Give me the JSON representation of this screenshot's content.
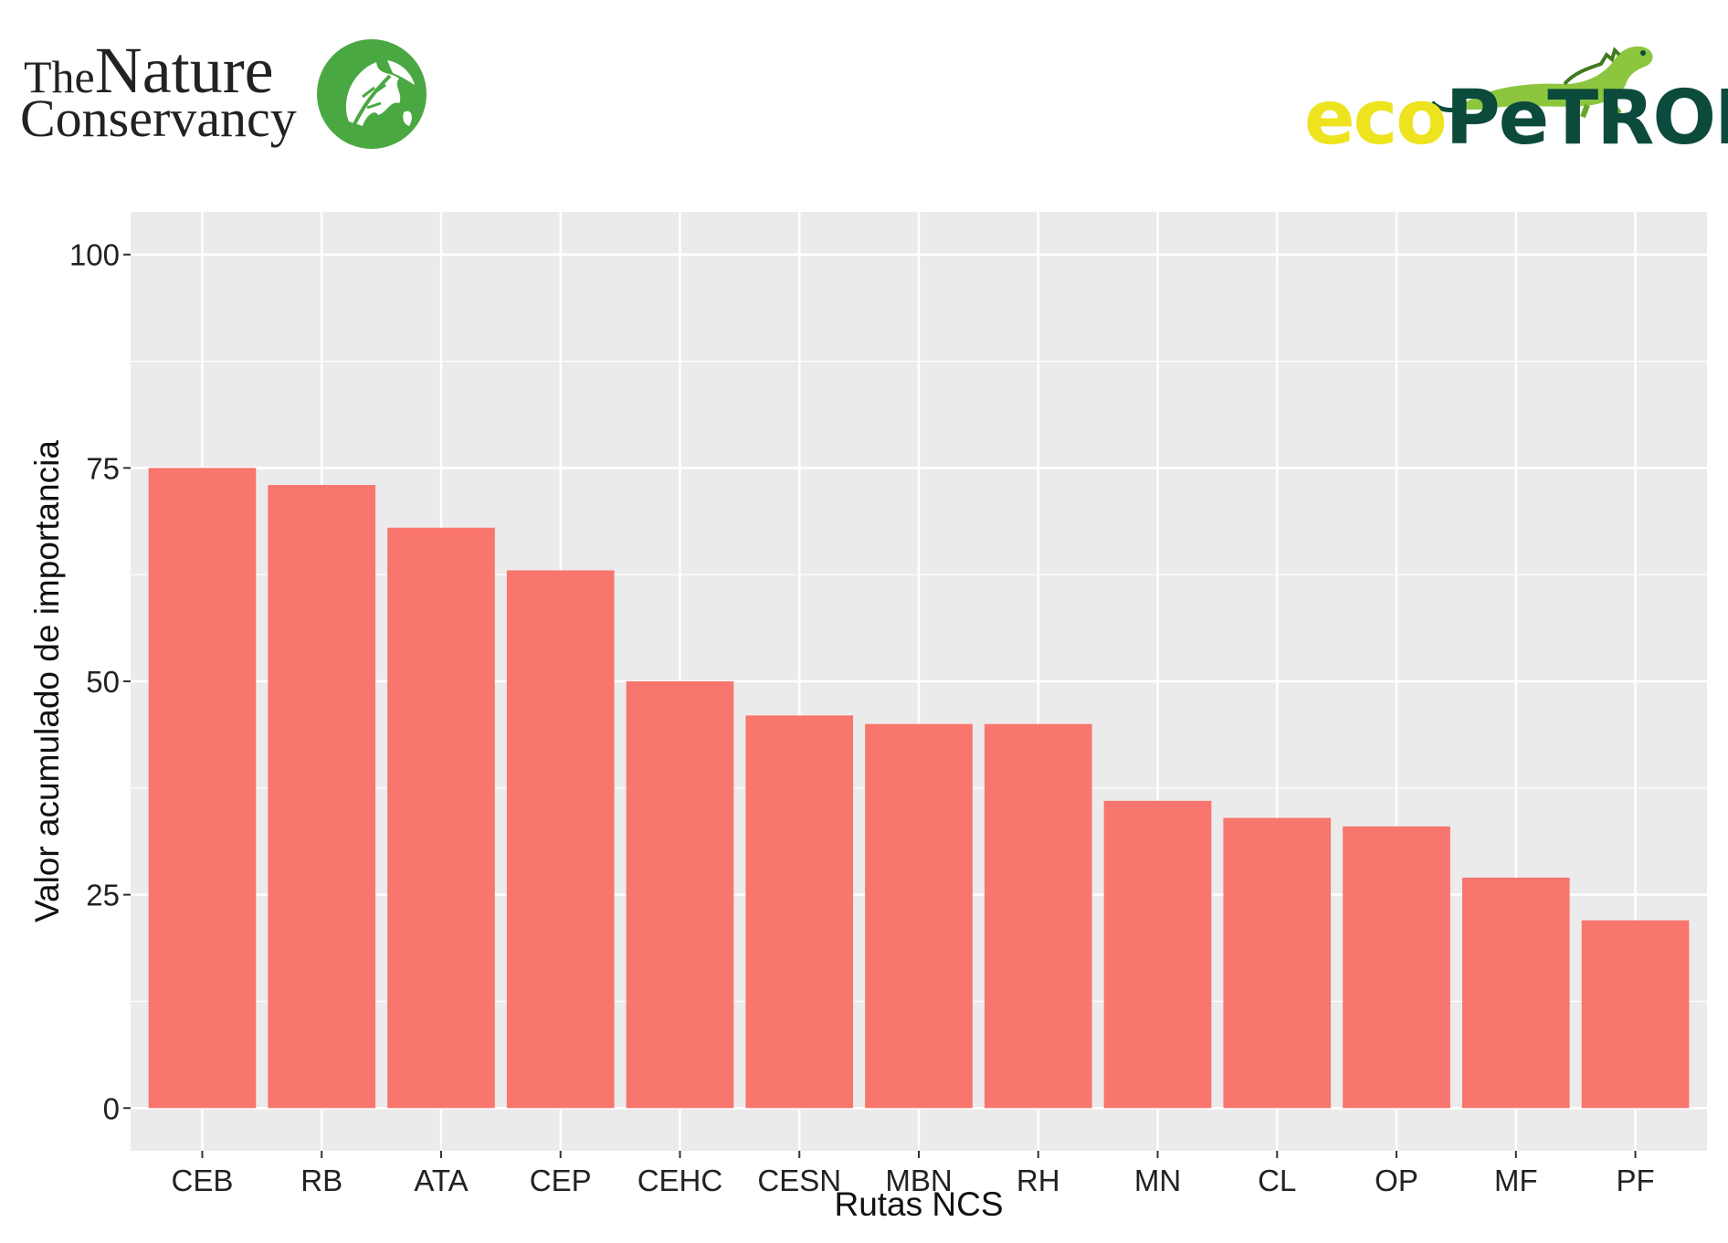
{
  "logos": {
    "tnc": {
      "line1_the": "The",
      "line1_nature": "Nature",
      "line2": "Conservancy",
      "icon": "oak-leaf-globe-icon",
      "color": "#4aa842"
    },
    "ecopetrol": {
      "part1": "eco",
      "part2": "PeTROL",
      "icon": "iguana-icon",
      "color_yellow": "#ede31f",
      "color_green": "#0c4a3c"
    }
  },
  "chart_data": {
    "type": "bar",
    "categories": [
      "CEB",
      "RB",
      "ATA",
      "CEP",
      "CEHC",
      "CESN",
      "MBN",
      "RH",
      "MN",
      "CL",
      "OP",
      "MF",
      "PF"
    ],
    "values": [
      75,
      73,
      68,
      63,
      50,
      46,
      45,
      45,
      36,
      34,
      33,
      27,
      22
    ],
    "xlabel": "Rutas NCS",
    "ylabel": "Valor acumulado de importancia",
    "yticks": [
      0,
      25,
      50,
      75,
      100
    ],
    "ylim": [
      -5,
      105
    ],
    "bar_color": "#f8766d",
    "panel_color": "#ebebeb",
    "grid": true,
    "legend": "none"
  }
}
